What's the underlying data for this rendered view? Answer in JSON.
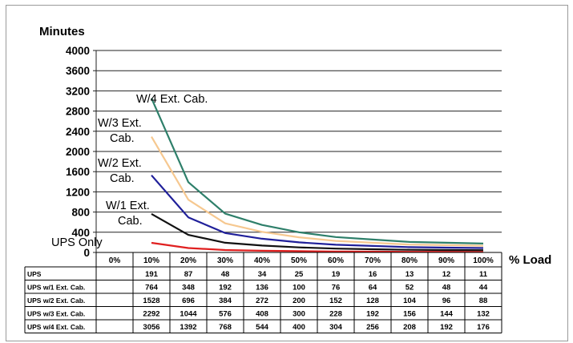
{
  "chart_data": {
    "type": "line",
    "ylabel": "Minutes",
    "xlabel": "% Load",
    "categories": [
      "0%",
      "10%",
      "20%",
      "30%",
      "40%",
      "50%",
      "60%",
      "70%",
      "80%",
      "90%",
      "100%"
    ],
    "yticks": [
      0,
      400,
      800,
      1200,
      1600,
      2000,
      2400,
      2800,
      3200,
      3600,
      4000
    ],
    "ytick_labels": [
      "0",
      "400",
      "800",
      "1200",
      "1600",
      "2000",
      "2400",
      "2800",
      "3200",
      "3600",
      "4000"
    ],
    "ylim": [
      0,
      4000
    ],
    "grid": true,
    "legend": "none",
    "series": [
      {
        "name": "UPS",
        "color": "#e02020",
        "values": [
          null,
          191,
          87,
          48,
          34,
          25,
          19,
          16,
          13,
          12,
          11
        ],
        "table_values": [
          "",
          "191",
          "87",
          "48",
          "34",
          "25",
          "19",
          "16",
          "13",
          "12",
          "11"
        ]
      },
      {
        "name": "UPS w/1 Ext. Cab.",
        "color": "#111111",
        "values": [
          null,
          764,
          348,
          192,
          136,
          100,
          76,
          64,
          52,
          48,
          44
        ],
        "table_values": [
          "",
          "764",
          "348",
          "192",
          "136",
          "100",
          "76",
          "64",
          "52",
          "48",
          "44"
        ]
      },
      {
        "name": "UPS w/2 Ext. Cab.",
        "color": "#20209a",
        "values": [
          null,
          1528,
          696,
          384,
          272,
          200,
          152,
          128,
          104,
          96,
          88
        ],
        "table_values": [
          "",
          "1528",
          "696",
          "384",
          "272",
          "200",
          "152",
          "128",
          "104",
          "96",
          "88"
        ]
      },
      {
        "name": "UPS w/3 Ext. Cab.",
        "color": "#f6c890",
        "values": [
          null,
          2292,
          1044,
          576,
          408,
          300,
          228,
          192,
          156,
          144,
          132
        ],
        "table_values": [
          "",
          "2292",
          "1044",
          "576",
          "408",
          "300",
          "228",
          "192",
          "156",
          "144",
          "132"
        ]
      },
      {
        "name": "UPS w/4 Ext. Cab.",
        "color": "#2e7f6a",
        "values": [
          null,
          3056,
          1392,
          768,
          544,
          400,
          304,
          256,
          208,
          192,
          176
        ],
        "table_values": [
          "",
          "3056",
          "1392",
          "768",
          "544",
          "400",
          "304",
          "256",
          "208",
          "192",
          "176"
        ]
      }
    ],
    "annotations": [
      {
        "lines": [
          "UPS Only"
        ],
        "series": 0
      },
      {
        "lines": [
          "W/1 Ext.",
          "Cab."
        ],
        "series": 1
      },
      {
        "lines": [
          "W/2 Ext.",
          "Cab."
        ],
        "series": 2
      },
      {
        "lines": [
          "W/3 Ext.",
          "Cab."
        ],
        "series": 3
      },
      {
        "lines": [
          "W/4 Ext. Cab."
        ],
        "series": 4
      }
    ]
  }
}
